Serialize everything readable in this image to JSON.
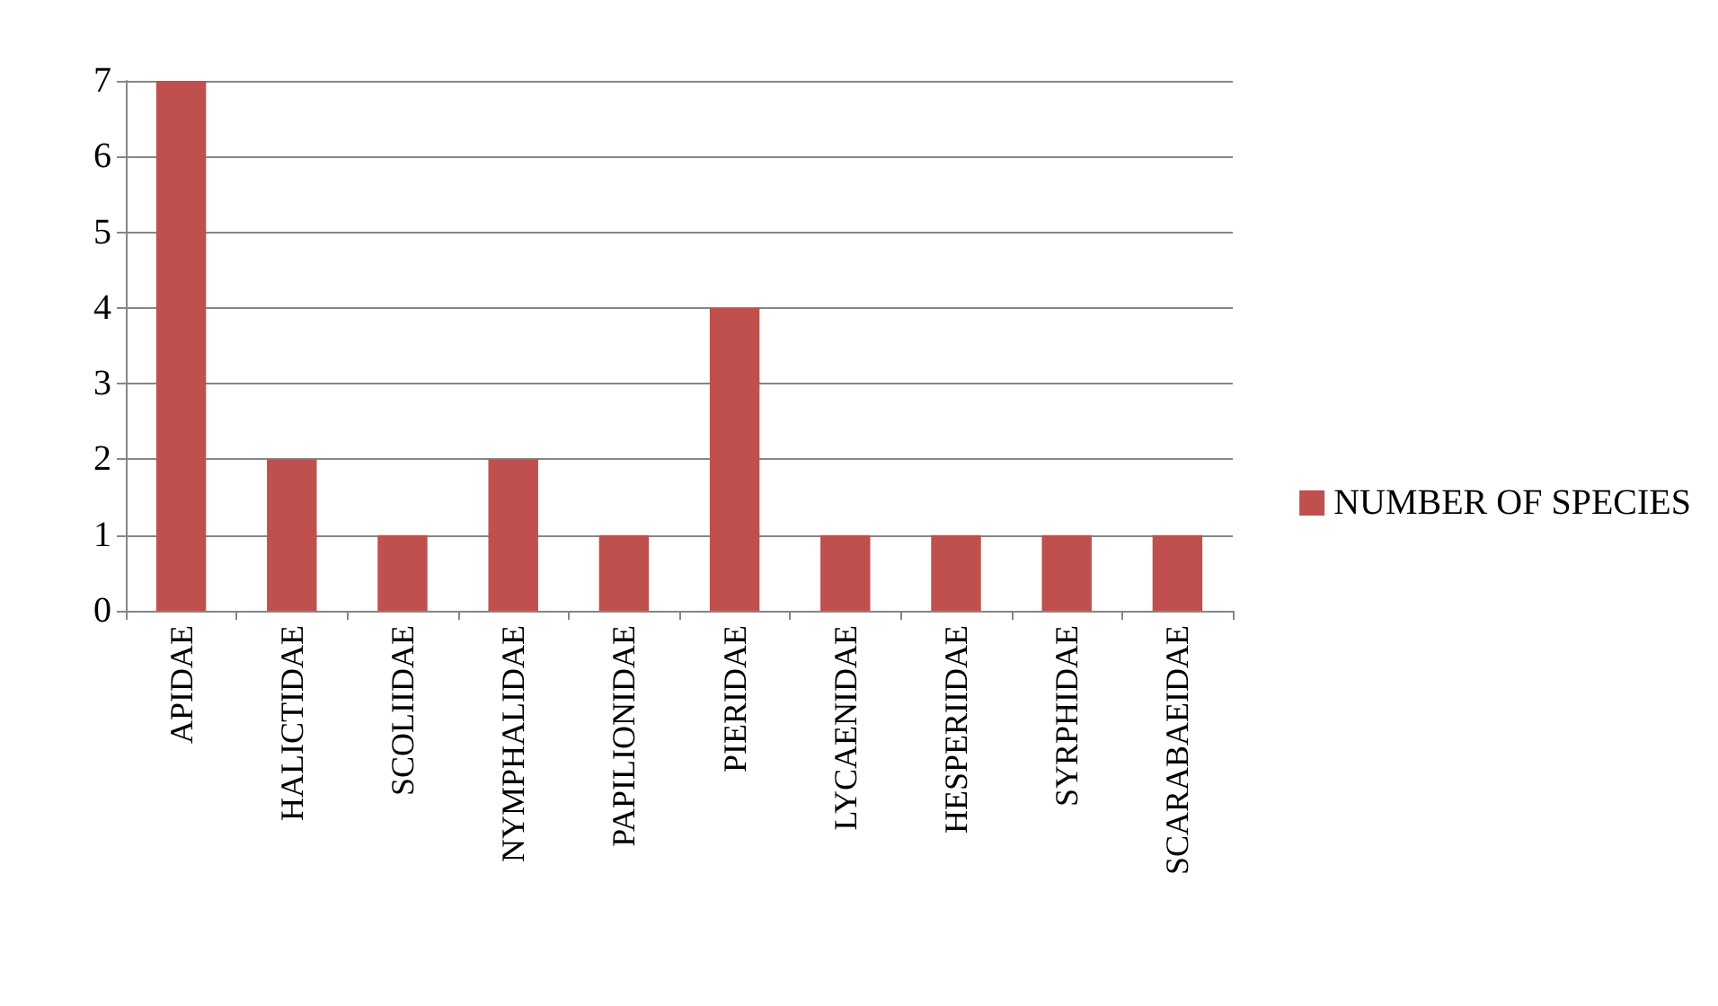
{
  "chart_data": {
    "type": "bar",
    "categories": [
      "APIDAE",
      "HALICTIDAE",
      "SCOLIIDAE",
      "NYMPHALIDAE",
      "PAPILIONIDAE",
      "PIERIDAE",
      "LYCAENIDAE",
      "HESPERIIDAE",
      "SYRPHIDAE",
      "SCARABAEIDAE"
    ],
    "series": [
      {
        "name": "NUMBER OF SPECIES",
        "color": "#c0504d",
        "values": [
          7,
          2,
          1,
          2,
          1,
          4,
          1,
          1,
          1,
          1
        ]
      }
    ],
    "ylim": [
      0,
      7
    ],
    "yticks": [
      0,
      1,
      2,
      3,
      4,
      5,
      6,
      7
    ],
    "grid": "y",
    "legend": "right"
  }
}
